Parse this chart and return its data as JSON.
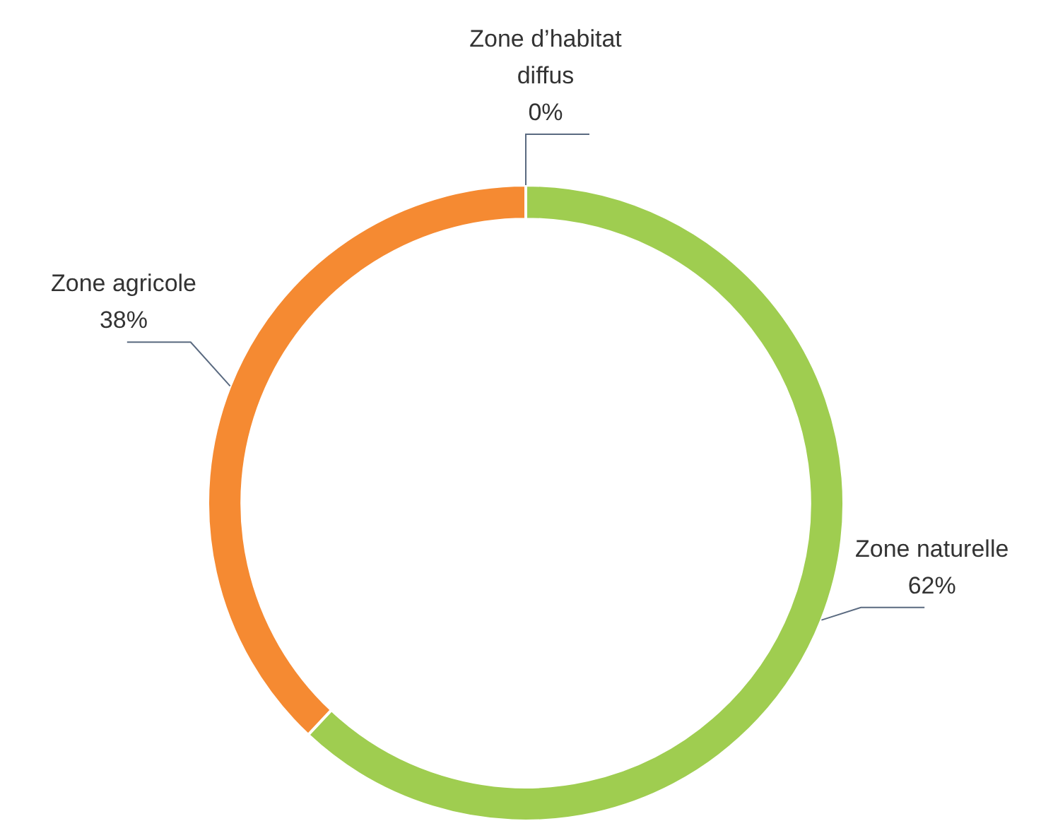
{
  "chart_data": {
    "type": "donut",
    "categories": [
      "Zone naturelle",
      "Zone agricole",
      "Zone d’habitat diffus"
    ],
    "values": [
      62,
      38,
      0
    ],
    "colors": [
      "#9fcd50",
      "#f58a32",
      "#4472c4"
    ],
    "value_labels": [
      "62%",
      "38%",
      "0%"
    ],
    "legend": false
  }
}
